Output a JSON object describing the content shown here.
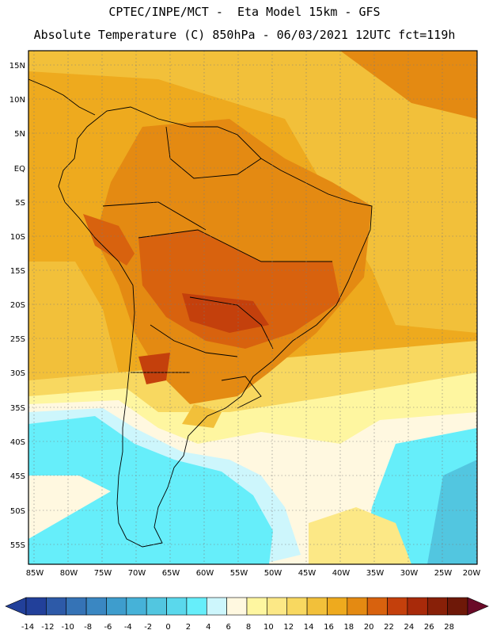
{
  "header": {
    "line1": "CPTEC/INPE/MCT -  Eta Model 15km - GFS",
    "line2": "Absolute Temperature (C) 850hPa - 06/03/2021 12UTC fct=119h"
  },
  "map": {
    "lat_labels": [
      "15N",
      "10N",
      "5N",
      "EQ",
      "5S",
      "10S",
      "15S",
      "20S",
      "25S",
      "30S",
      "35S",
      "40S",
      "45S",
      "50S",
      "55S"
    ],
    "lon_labels": [
      "85W",
      "80W",
      "75W",
      "70W",
      "65W",
      "60W",
      "55W",
      "50W",
      "45W",
      "40W",
      "35W",
      "30W",
      "25W",
      "20W"
    ],
    "region": "South America"
  },
  "colorbar": {
    "labels": [
      "-14",
      "-12",
      "-10",
      "-8",
      "-6",
      "-4",
      "-2",
      "0",
      "2",
      "4",
      "6",
      "8",
      "10",
      "12",
      "14",
      "16",
      "18",
      "20",
      "22",
      "24",
      "26",
      "28"
    ],
    "colors": [
      "#22409a",
      "#2d5aa8",
      "#3573b6",
      "#3a87c2",
      "#3e9dcd",
      "#46b2d8",
      "#52c6e0",
      "#5ad8ec",
      "#66eefa",
      "#cdf6fc",
      "#fff8e0",
      "#fef6a0",
      "#fce886",
      "#f8d860",
      "#f2c03a",
      "#eeaa1e",
      "#e48a12",
      "#d8620e",
      "#c4400c",
      "#a82a0a",
      "#882008",
      "#6e1808"
    ]
  }
}
